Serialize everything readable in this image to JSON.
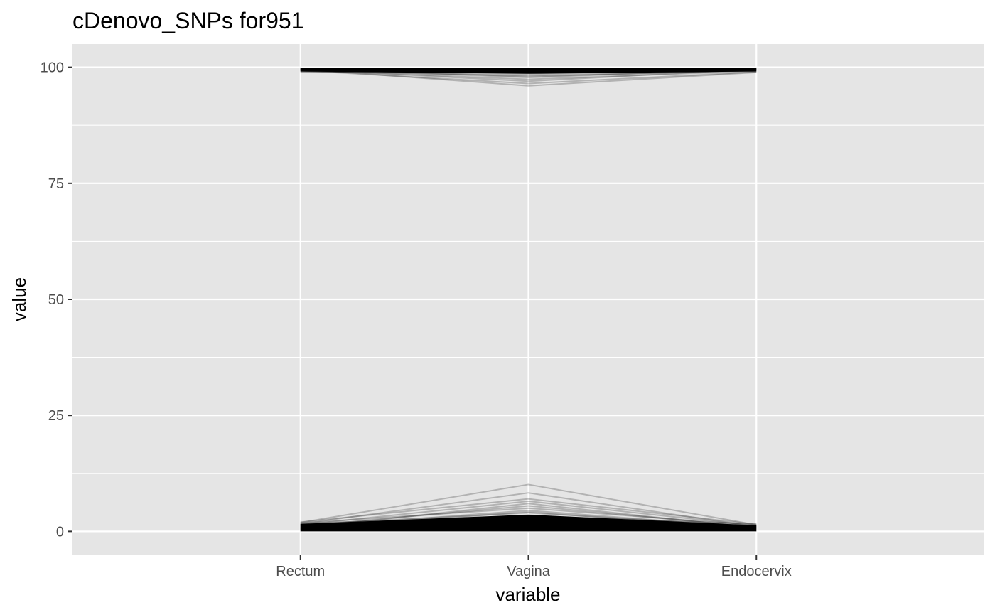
{
  "chart_data": {
    "type": "line",
    "subtype": "parallel-coordinates",
    "title": "cDenovo_SNPs for951",
    "xlabel": "variable",
    "ylabel": "value",
    "categories": [
      "Rectum",
      "Vagina",
      "Endocervix"
    ],
    "y_ticks": [
      0,
      25,
      50,
      75,
      100
    ],
    "ylim": [
      -5,
      105
    ],
    "grid": true,
    "legend": "none",
    "line_color": "#000000",
    "panel_background": "#e5e5e5",
    "grid_color": "#ffffff",
    "series_groups": [
      {
        "group": "high",
        "lines": [
          [
            99.6,
            99.5,
            99.6
          ],
          [
            99.4,
            99.2,
            99.5
          ],
          [
            99.7,
            99.0,
            99.7
          ],
          [
            99.3,
            98.8,
            99.4
          ],
          [
            99.5,
            98.5,
            99.6
          ],
          [
            99.2,
            98.2,
            99.3
          ],
          [
            99.6,
            97.8,
            99.5
          ],
          [
            99.4,
            97.4,
            99.2
          ],
          [
            99.5,
            97.0,
            99.6
          ],
          [
            99.3,
            96.5,
            99.0
          ],
          [
            99.6,
            96.0,
            98.9
          ],
          [
            99.1,
            98.9,
            99.7
          ],
          [
            99.8,
            99.3,
            99.8
          ],
          [
            99.0,
            99.6,
            99.1
          ],
          [
            99.7,
            98.0,
            99.4
          ]
        ]
      },
      {
        "group": "low",
        "lines": [
          [
            0.5,
            0.8,
            0.4
          ],
          [
            0.8,
            1.5,
            0.7
          ],
          [
            1.0,
            2.0,
            0.9
          ],
          [
            0.3,
            2.6,
            0.5
          ],
          [
            1.2,
            3.0,
            1.0
          ],
          [
            0.6,
            3.5,
            0.6
          ],
          [
            1.5,
            4.0,
            1.1
          ],
          [
            0.9,
            4.5,
            0.8
          ],
          [
            1.8,
            5.0,
            1.3
          ],
          [
            1.1,
            5.5,
            0.9
          ],
          [
            0.7,
            6.0,
            0.7
          ],
          [
            1.4,
            6.5,
            1.2
          ],
          [
            2.0,
            7.0,
            1.5
          ],
          [
            1.6,
            8.3,
            1.0
          ],
          [
            1.9,
            10.1,
            1.4
          ],
          [
            0.4,
            0.3,
            0.3
          ],
          [
            1.3,
            1.2,
            1.2
          ],
          [
            0.2,
            2.3,
            0.2
          ],
          [
            1.7,
            3.3,
            1.6
          ],
          [
            0.6,
            4.2,
            0.5
          ]
        ]
      }
    ]
  }
}
